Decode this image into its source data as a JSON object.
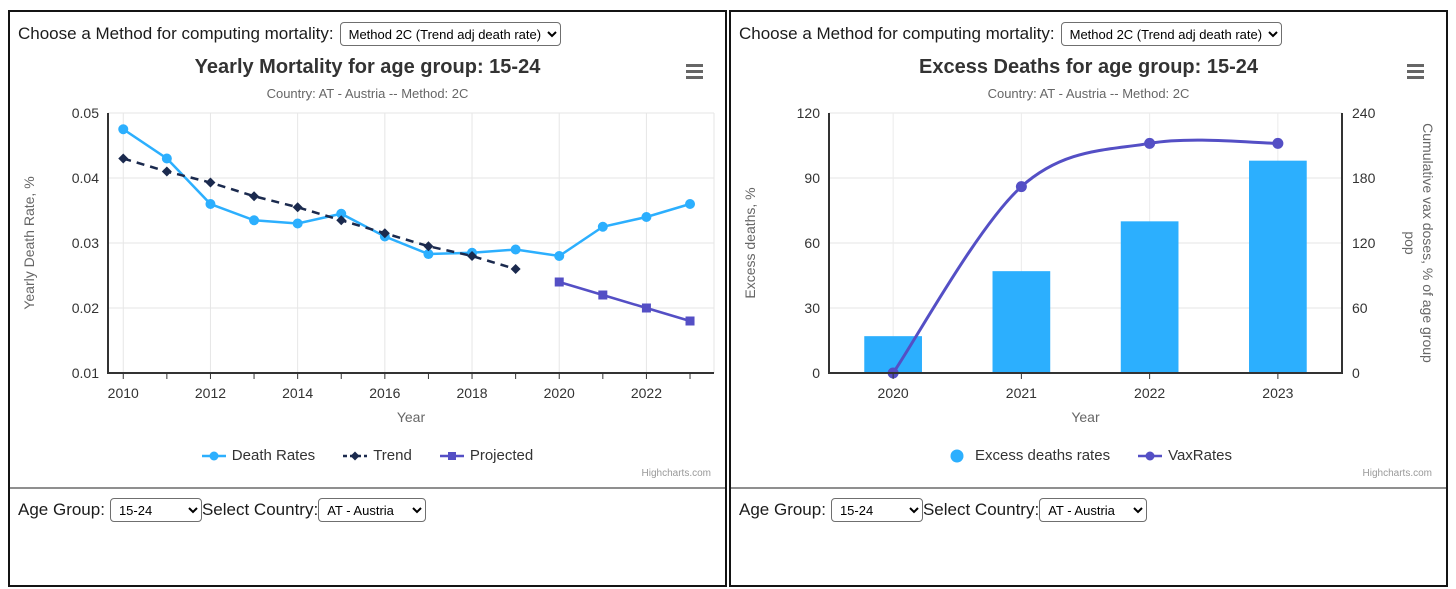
{
  "method_bar": {
    "label": "Choose a Method for computing mortality:",
    "selected_option": "Method 2C (Trend adj death rate)"
  },
  "footer": {
    "age_group_label": "Age Group:",
    "age_group_value": "15-24",
    "country_label": "Select Country:",
    "country_value": "AT - Austria"
  },
  "credits": "Highcharts.com",
  "colors": {
    "blue": "#2caffe",
    "navy": "#1b2a4e",
    "purple": "#544fc5",
    "axis_line": "#333333",
    "grid": "#e6e6e6",
    "grid_faint": "#ebebeb",
    "tick_label": "#333333",
    "axis_title": "#666666",
    "credits_color": "#999999"
  },
  "chart_data": [
    {
      "type": "line",
      "title": "Yearly Mortality for age group: 15-24",
      "subtitle": "Country: AT - Austria -- Method: 2C",
      "xlabel": "Year",
      "ylabel": "Yearly Death Rate, %",
      "xlim": [
        2009.65,
        2023.55
      ],
      "ylim": [
        0.01,
        0.05
      ],
      "x_major_ticks": [
        2010,
        2012,
        2014,
        2016,
        2018,
        2020,
        2022
      ],
      "x_minor_tick_years": [
        2010,
        2023
      ],
      "y_ticks": [
        0.01,
        0.02,
        0.03,
        0.04,
        0.05
      ],
      "grid": true,
      "legend_position": "bottom",
      "series": [
        {
          "name": "Death Rates",
          "color": "#2caffe",
          "marker": "circle",
          "dash": "solid",
          "x": [
            2010,
            2011,
            2012,
            2013,
            2014,
            2015,
            2016,
            2017,
            2018,
            2019,
            2020,
            2021,
            2022,
            2023
          ],
          "y": [
            0.0475,
            0.043,
            0.036,
            0.0335,
            0.033,
            0.0345,
            0.031,
            0.0283,
            0.0285,
            0.029,
            0.028,
            0.0325,
            0.034,
            0.036
          ]
        },
        {
          "name": "Trend",
          "color": "#1b2a4e",
          "marker": "diamond",
          "dash": "dashed",
          "x": [
            2010,
            2011,
            2012,
            2013,
            2014,
            2015,
            2016,
            2017,
            2018,
            2019
          ],
          "y": [
            0.043,
            0.041,
            0.0393,
            0.0372,
            0.0355,
            0.0335,
            0.0315,
            0.0295,
            0.028,
            0.026
          ]
        },
        {
          "name": "Projected",
          "color": "#544fc5",
          "marker": "square",
          "dash": "solid",
          "x": [
            2020,
            2021,
            2022,
            2023
          ],
          "y": [
            0.024,
            0.022,
            0.02,
            0.018
          ]
        }
      ]
    },
    {
      "type": "column+spline",
      "title": "Excess Deaths for age group: 15-24",
      "subtitle": "Country: AT - Austria -- Method: 2C",
      "xlabel": "Year",
      "ylabel_left": "Excess deaths, %",
      "ylabel_right": "Cumulative vax doses, % of age group pop",
      "categories": [
        "2020",
        "2021",
        "2022",
        "2023"
      ],
      "ylim_left": [
        0,
        120
      ],
      "y_ticks_left": [
        0,
        30,
        60,
        90,
        120
      ],
      "ylim_right": [
        0,
        240
      ],
      "y_ticks_right": [
        0,
        60,
        120,
        180,
        240
      ],
      "grid": true,
      "legend_position": "bottom",
      "series": [
        {
          "name": "Excess deaths rates",
          "type": "column",
          "axis": "left",
          "color": "#2caffe",
          "values": [
            17,
            47,
            70,
            98
          ]
        },
        {
          "name": "VaxRates",
          "type": "spline",
          "axis": "right",
          "color": "#544fc5",
          "values": [
            0,
            172,
            212,
            212
          ]
        }
      ]
    }
  ]
}
